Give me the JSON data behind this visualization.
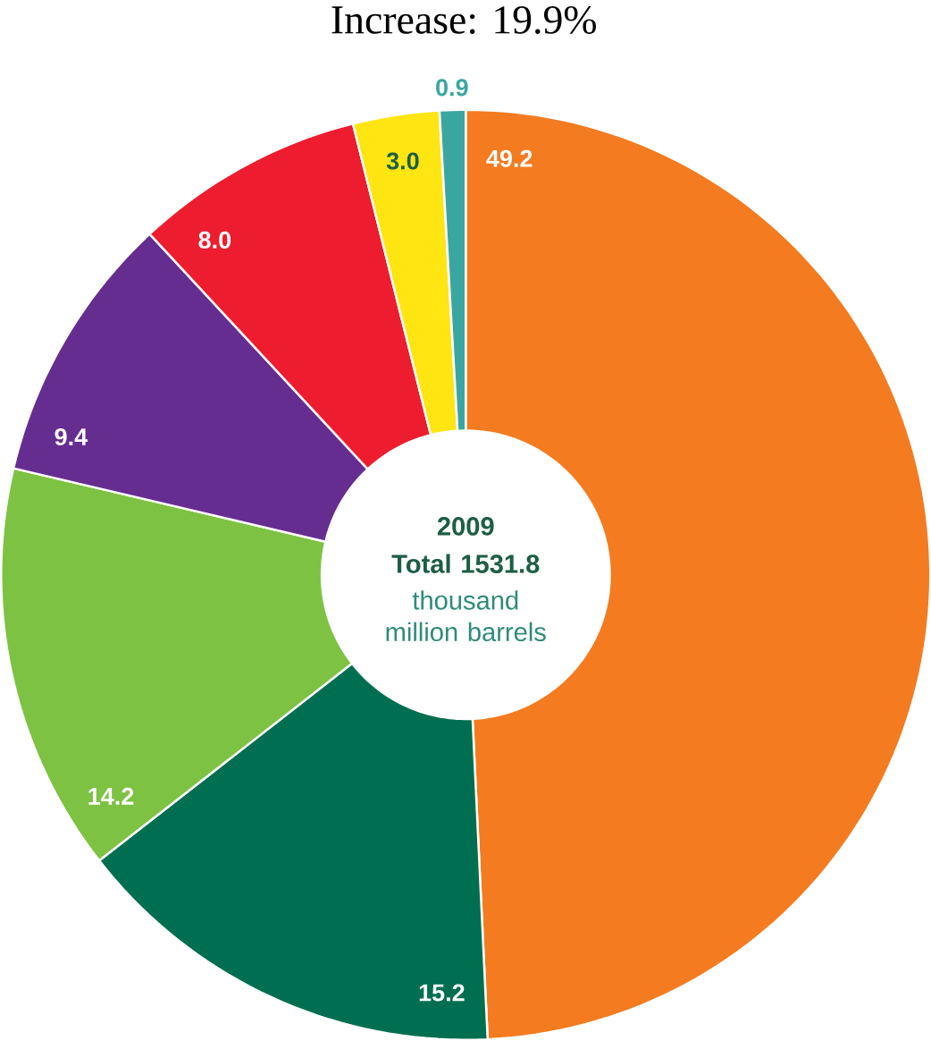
{
  "chart_data": {
    "type": "donut",
    "title": "Increase: 19.9%",
    "categories": [
      null,
      null,
      null,
      null,
      null,
      null,
      null
    ],
    "values": [
      49.2,
      15.2,
      14.2,
      9.4,
      8.0,
      3.0,
      0.9
    ],
    "colors": [
      "#f47b20",
      "#006e50",
      "#7dc242",
      "#662d91",
      "#ed1c2e",
      "#ffe512",
      "#3aa6a0"
    ],
    "value_labels": [
      "49.2",
      "15.2",
      "14.2",
      "9.4",
      "8.0",
      "3.0",
      "0.9"
    ],
    "annotations": [
      "2009",
      "Total 1531.8",
      "thousand million barrels"
    ]
  }
}
